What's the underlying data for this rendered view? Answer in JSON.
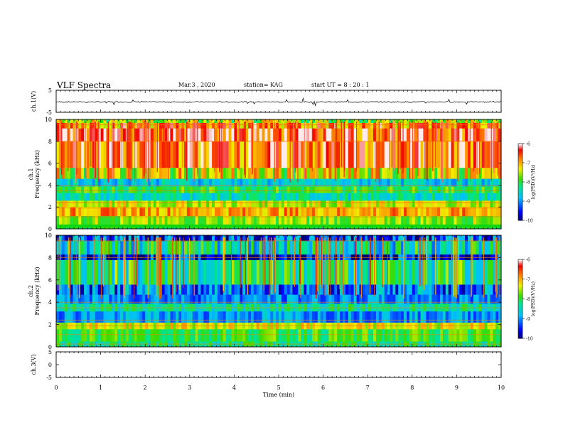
{
  "header": {
    "title": "VLF Spectra",
    "date": "Mar.3  , 2020",
    "station": "station= KAG",
    "start_ut": "start  UT  =   8 : 20 : 1"
  },
  "chart_data": [
    {
      "type": "line",
      "panel": "ch1-waveform",
      "ylabel": "ch.1(V)",
      "xlim": [
        0,
        10
      ],
      "ylim": [
        -5,
        5
      ],
      "yticks": [
        "5",
        "-5"
      ],
      "level": -0.3,
      "note_series": "amplitude trace near 0 V with small spikes"
    },
    {
      "type": "heatmap",
      "panel": "ch1-spectrogram",
      "ylabel": "ch.1\nFrequency  (kHz)",
      "xlim": [
        0,
        10
      ],
      "ylim": [
        0,
        10
      ],
      "yticks": [
        "0",
        "2",
        "4",
        "6",
        "8",
        "10"
      ],
      "colorbar": {
        "label": "log(PSD)(V²/Hz)",
        "range": [
          -10,
          -6
        ],
        "ticks": [
          "-6",
          "-7",
          "-8",
          "-9",
          "-10"
        ]
      },
      "bands": [
        {
          "from": 0.0,
          "to": 0.4,
          "value": -8.0
        },
        {
          "from": 0.4,
          "to": 1.2,
          "value": -7.6
        },
        {
          "from": 1.2,
          "to": 2.0,
          "value": -6.9
        },
        {
          "from": 2.0,
          "to": 2.6,
          "value": -7.4
        },
        {
          "from": 2.6,
          "to": 3.3,
          "value": -8.4
        },
        {
          "from": 3.3,
          "to": 3.9,
          "value": -7.9
        },
        {
          "from": 3.9,
          "to": 4.6,
          "value": -8.6
        },
        {
          "from": 4.6,
          "to": 5.6,
          "value": -7.6
        },
        {
          "from": 5.6,
          "to": 8.0,
          "value": -6.8
        },
        {
          "from": 8.0,
          "to": 9.2,
          "value": -6.6
        },
        {
          "from": 9.2,
          "to": 9.7,
          "value": -7.0
        },
        {
          "from": 9.7,
          "to": 10.0,
          "value": -7.8
        }
      ]
    },
    {
      "type": "heatmap",
      "panel": "ch2-spectrogram",
      "ylabel": "ch.2\nFrequency  (kHz)",
      "xlim": [
        0,
        10
      ],
      "ylim": [
        0,
        10
      ],
      "yticks": [
        "0",
        "2",
        "4",
        "6",
        "8",
        "10"
      ],
      "colorbar": {
        "label": "log(PSD)(V²/Hz)",
        "range": [
          -10,
          -6
        ],
        "ticks": [
          "-6",
          "-7",
          "-8",
          "-9",
          "-10"
        ]
      },
      "bands": [
        {
          "from": 0.0,
          "to": 0.5,
          "value": -8.2
        },
        {
          "from": 0.5,
          "to": 1.6,
          "value": -7.9
        },
        {
          "from": 1.6,
          "to": 2.2,
          "value": -7.3
        },
        {
          "from": 2.2,
          "to": 3.2,
          "value": -8.9
        },
        {
          "from": 3.2,
          "to": 3.9,
          "value": -8.3
        },
        {
          "from": 3.9,
          "to": 4.7,
          "value": -9.0
        },
        {
          "from": 4.7,
          "to": 5.6,
          "value": -9.3
        },
        {
          "from": 5.6,
          "to": 7.8,
          "value": -8.4
        },
        {
          "from": 7.8,
          "to": 8.3,
          "value": -9.8
        },
        {
          "from": 8.3,
          "to": 9.5,
          "value": -8.6
        },
        {
          "from": 9.5,
          "to": 10.0,
          "value": -9.5
        }
      ]
    },
    {
      "type": "line",
      "panel": "ch3-waveform",
      "ylabel": "ch.3(V)",
      "xlim": [
        0,
        10
      ],
      "ylim": [
        -5,
        5
      ],
      "yticks": [
        "5",
        "0",
        "-5"
      ],
      "xlabel": "Time  (min)",
      "xticks": [
        "0",
        "1",
        "2",
        "3",
        "4",
        "5",
        "6",
        "7",
        "8",
        "9",
        "10"
      ]
    }
  ]
}
